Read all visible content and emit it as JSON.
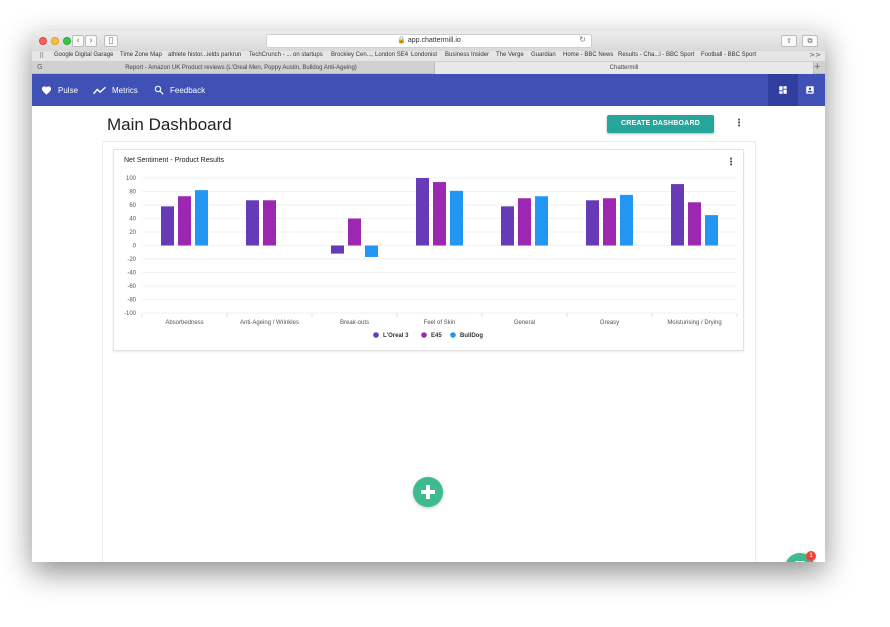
{
  "browser": {
    "url": "app.chattermill.io",
    "bookmarks": [
      "Google Digital Garage",
      "Time Zone Map",
      "athlete histor...ields parkrun",
      "TechCrunch - ... on startups",
      "Brockley Cen..., London SE4",
      "Londonist",
      "Business Insider",
      "The Verge",
      "Guardian",
      "Home - BBC News",
      "Results - Cha...l - BBC Sport",
      "Football - BBC Sport"
    ],
    "bookmarks_more": ">>",
    "tabs": [
      {
        "title": "Report - Amazon UK Product reviews (L'Oreal Men, Poppy Austin, Bulldog Anti-Ageing)"
      },
      {
        "title": "Chattermill"
      }
    ]
  },
  "appbar": {
    "nav": [
      {
        "label": "Pulse",
        "icon": "heart-icon"
      },
      {
        "label": "Metrics",
        "icon": "trend-line-icon"
      },
      {
        "label": "Feedback",
        "icon": "search-icon"
      }
    ],
    "right_icons": [
      "dashboard-icon",
      "account-box-icon"
    ],
    "color": "#3f51b5"
  },
  "main": {
    "title": "Main Dashboard",
    "create_button": "CREATE DASHBOARD",
    "accent": "#26a69a"
  },
  "chat": {
    "badge": "1"
  },
  "chart_data": {
    "type": "bar",
    "title": "Net Sentiment - Product Results",
    "categories": [
      "Absorbedness",
      "Anti-Ageing / Wrinkles",
      "Break-outs",
      "Feel of Skin",
      "General",
      "Greasy",
      "Moisturising / Drying"
    ],
    "series": [
      {
        "name": "L'Oreal 3",
        "color": "#673ab7",
        "values": [
          58,
          67,
          -12,
          100,
          58,
          67,
          91
        ]
      },
      {
        "name": "E45",
        "color": "#9c27b0",
        "values": [
          73,
          67,
          40,
          94,
          70,
          70,
          64
        ]
      },
      {
        "name": "BullDog",
        "color": "#2196f3",
        "values": [
          82,
          null,
          -17,
          81,
          73,
          75,
          45
        ]
      }
    ],
    "ylim": [
      -100,
      100
    ],
    "yticks": [
      100,
      80,
      60,
      40,
      20,
      0,
      -20,
      -40,
      -60,
      -80,
      -100
    ],
    "grid": true,
    "legend": "bottom"
  }
}
